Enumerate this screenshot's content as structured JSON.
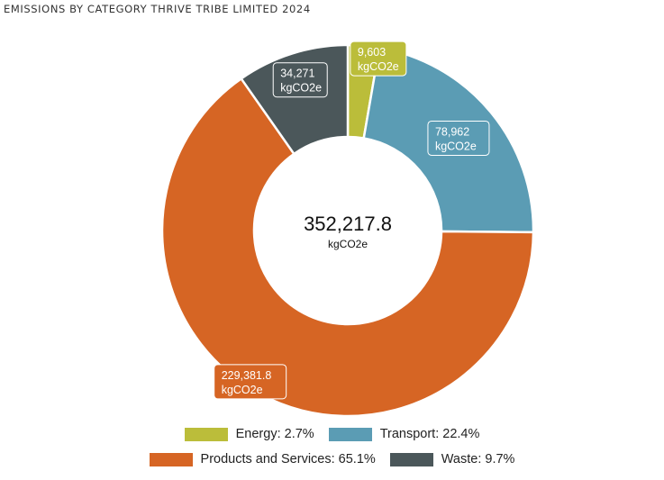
{
  "title": "EMISSIONS BY CATEGORY THRIVE TRIBE LIMITED 2024",
  "chart_data": {
    "type": "pie",
    "variant": "donut",
    "title": "EMISSIONS BY CATEGORY THRIVE TRIBE LIMITED 2024",
    "total": "352,217.8",
    "unit": "kgCO2e",
    "slices": [
      {
        "name": "Energy",
        "value": 9603,
        "label": "9,603",
        "unit": "kgCO2e",
        "percent": "2.7%",
        "color": "#bbbd3a"
      },
      {
        "name": "Transport",
        "value": 78962,
        "label": "78,962",
        "unit": "kgCO2e",
        "percent": "22.4%",
        "color": "#5b9cb4"
      },
      {
        "name": "Products and Services",
        "value": 229381.8,
        "label": "229,381.8",
        "unit": "kgCO2e",
        "percent": "65.1%",
        "color": "#d66524"
      },
      {
        "name": "Waste",
        "value": 34271,
        "label": "34,271",
        "unit": "kgCO2e",
        "percent": "9.7%",
        "color": "#4b575a"
      }
    ],
    "legend": {
      "placement": "bottom",
      "rows": [
        [
          {
            "label": "Energy: 2.7%",
            "color": "#bbbd3a"
          },
          {
            "label": "Transport: 22.4%",
            "color": "#5b9cb4"
          }
        ],
        [
          {
            "label": "Products and Services: 65.1%",
            "color": "#d66524"
          },
          {
            "label": "Waste: 9.7%",
            "color": "#4b575a"
          }
        ]
      ]
    }
  }
}
